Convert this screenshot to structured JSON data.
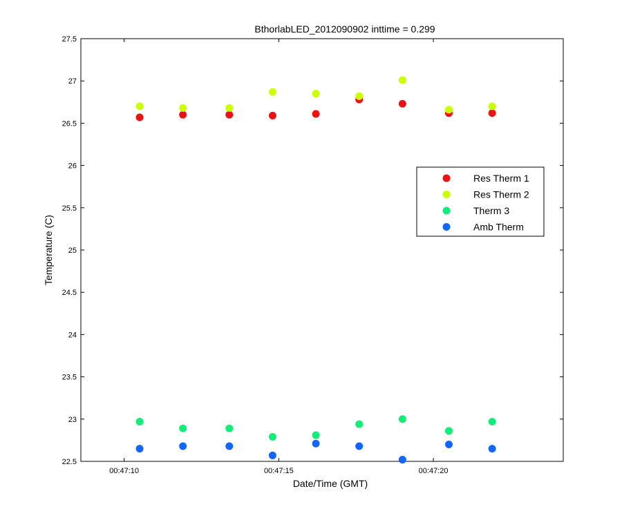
{
  "chart_data": {
    "type": "scatter",
    "title": "BthorlabLED_2012090902 inttime = 0.299",
    "xlabel": "Date/Time (GMT)",
    "ylabel": "Temperature (C)",
    "xlim": [
      "00:47:08.6",
      "00:47:24.2"
    ],
    "ylim": [
      22.5,
      27.5
    ],
    "xticks": [
      {
        "value": "00:47:10",
        "label": "00:47:10"
      },
      {
        "value": "00:47:15",
        "label": "00:47:15"
      },
      {
        "value": "00:47:20",
        "label": "00:47:20"
      }
    ],
    "yticks": [
      {
        "value": 22.5,
        "label": "22.5"
      },
      {
        "value": 23,
        "label": "23"
      },
      {
        "value": 23.5,
        "label": "23.5"
      },
      {
        "value": 24,
        "label": "24"
      },
      {
        "value": 24.5,
        "label": "24.5"
      },
      {
        "value": 25,
        "label": "25"
      },
      {
        "value": 25.5,
        "label": "25.5"
      },
      {
        "value": 26,
        "label": "26"
      },
      {
        "value": 26.5,
        "label": "26.5"
      },
      {
        "value": 27,
        "label": "27"
      },
      {
        "value": 27.5,
        "label": "27.5"
      }
    ],
    "x": [
      "00:47:10.5",
      "00:47:11.9",
      "00:47:13.4",
      "00:47:14.8",
      "00:47:16.2",
      "00:47:17.6",
      "00:47:19.0",
      "00:47:20.5",
      "00:47:21.9"
    ],
    "series": [
      {
        "name": "Res Therm 1",
        "color": "#ee1111",
        "values": [
          26.57,
          26.6,
          26.6,
          26.59,
          26.61,
          26.78,
          26.73,
          26.62,
          26.62
        ]
      },
      {
        "name": "Res Therm 2",
        "color": "#ccff00",
        "values": [
          26.7,
          26.68,
          26.68,
          26.87,
          26.85,
          26.82,
          27.01,
          26.66,
          26.7
        ]
      },
      {
        "name": "Therm 3",
        "color": "#11ee77",
        "values": [
          22.97,
          22.89,
          22.89,
          22.79,
          22.81,
          22.94,
          23.0,
          22.86,
          22.97
        ]
      },
      {
        "name": "Amb Therm",
        "color": "#1166ff",
        "values": [
          22.65,
          22.68,
          22.68,
          22.57,
          22.71,
          22.68,
          22.52,
          22.7,
          22.65
        ]
      }
    ],
    "grid": false,
    "legend_position": "right"
  }
}
